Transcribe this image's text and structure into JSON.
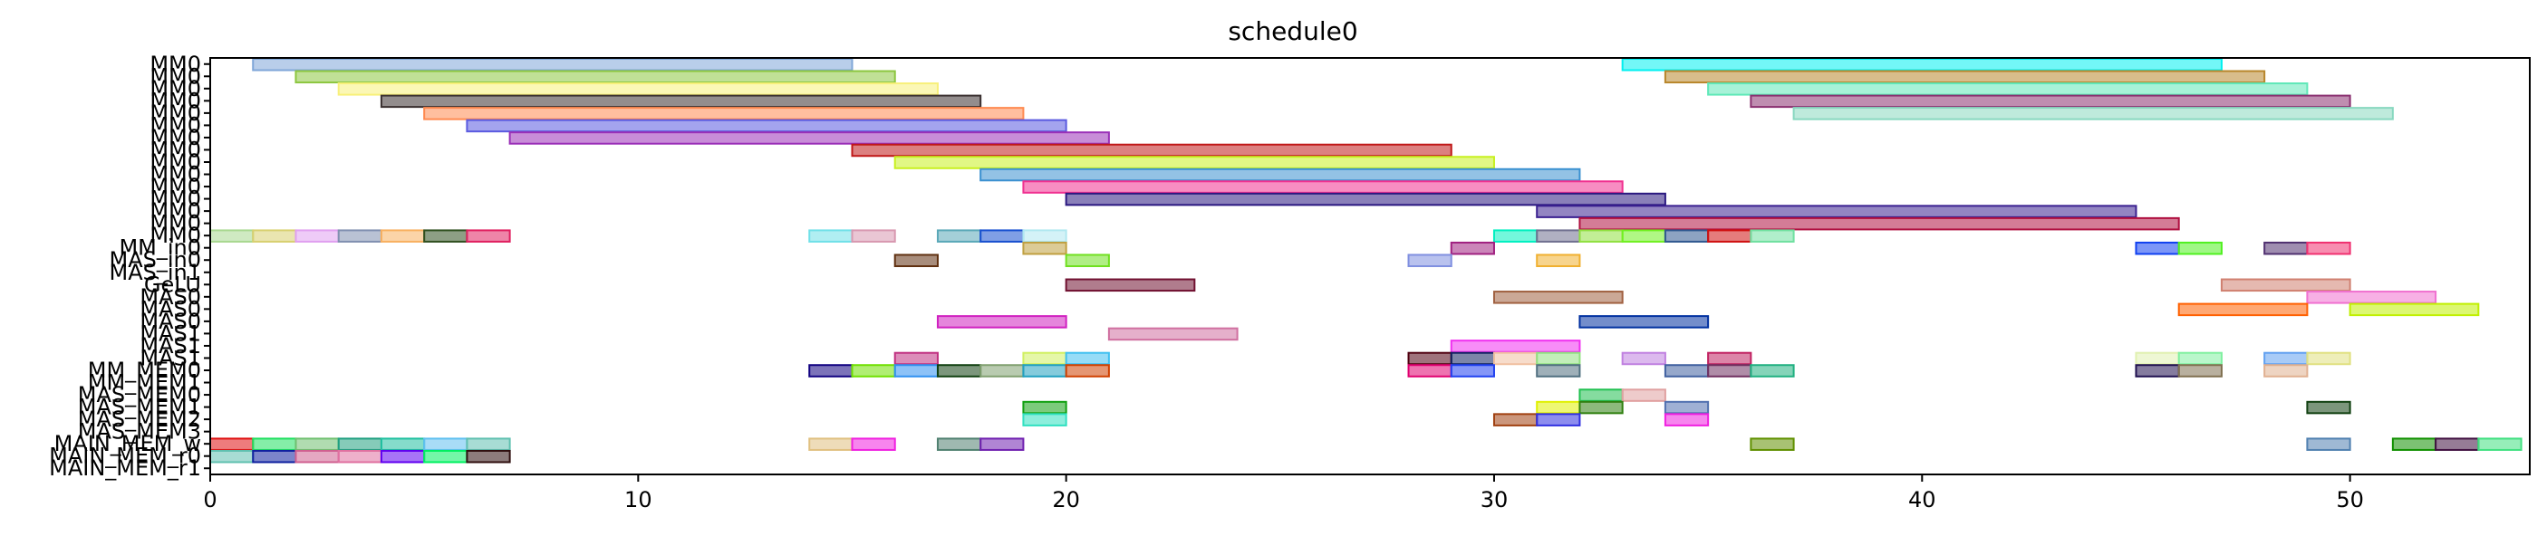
{
  "chart_data": {
    "type": "gantt",
    "title": "schedule0",
    "xlabel": "",
    "ylabel": "",
    "xlim": [
      0,
      54.2
    ],
    "xticks": [
      0,
      10,
      20,
      30,
      40,
      50
    ],
    "rows": [
      "MM0",
      "MM0",
      "MM0",
      "MM0",
      "MM0",
      "MM0",
      "MM0",
      "MM0",
      "MM0",
      "MM0",
      "MM0",
      "MM0",
      "MM0",
      "MM0",
      "MM0",
      "MM_in0",
      "MAS_in0",
      "MAS_in1",
      "GeLU",
      "MAS0",
      "MAS0",
      "MAS0",
      "MAS1",
      "MAS1",
      "MAS1",
      "MM_MEM0",
      "MM_MEM1",
      "MAS_MEM0",
      "MAS_MEM1",
      "MAS_MEM2",
      "MAS_MEM3",
      "MAIN_MEM_w",
      "MAIN_MEM_r0",
      "MAIN_MEM_r1"
    ],
    "tasks": [
      {
        "row": 0,
        "start": 1,
        "end": 15,
        "color": "#7FA6D8"
      },
      {
        "row": 0,
        "start": 33,
        "end": 47,
        "color": "#00F0F0"
      },
      {
        "row": 1,
        "start": 2,
        "end": 16,
        "color": "#8CC63F"
      },
      {
        "row": 1,
        "start": 34,
        "end": 48,
        "color": "#B8862B"
      },
      {
        "row": 2,
        "start": 3,
        "end": 17,
        "color": "#F8F07A"
      },
      {
        "row": 2,
        "start": 35,
        "end": 49,
        "color": "#5FE8B8"
      },
      {
        "row": 3,
        "start": 4,
        "end": 18,
        "color": "#3A3030"
      },
      {
        "row": 3,
        "start": 36,
        "end": 50,
        "color": "#8A3070"
      },
      {
        "row": 4,
        "start": 5,
        "end": 19,
        "color": "#FF8A50"
      },
      {
        "row": 4,
        "start": 37,
        "end": 51,
        "color": "#88D8C0"
      },
      {
        "row": 5,
        "start": 6,
        "end": 20,
        "color": "#5A5AE0"
      },
      {
        "row": 6,
        "start": 7,
        "end": 21,
        "color": "#9A30B8"
      },
      {
        "row": 7,
        "start": 15,
        "end": 29,
        "color": "#C01818"
      },
      {
        "row": 8,
        "start": 16,
        "end": 30,
        "color": "#C8F020"
      },
      {
        "row": 9,
        "start": 18,
        "end": 32,
        "color": "#3A90D0"
      },
      {
        "row": 10,
        "start": 19,
        "end": 33,
        "color": "#F03090"
      },
      {
        "row": 11,
        "start": 20,
        "end": 34,
        "color": "#2A1880"
      },
      {
        "row": 12,
        "start": 31,
        "end": 45,
        "color": "#3A2090"
      },
      {
        "row": 13,
        "start": 32,
        "end": 46,
        "color": "#B01040"
      },
      {
        "row": 14,
        "start": 0,
        "end": 1,
        "color": "#A8D890"
      },
      {
        "row": 14,
        "start": 1,
        "end": 2,
        "color": "#D8D070"
      },
      {
        "row": 14,
        "start": 2,
        "end": 3,
        "color": "#E0A0F0"
      },
      {
        "row": 14,
        "start": 3,
        "end": 4,
        "color": "#8090B0"
      },
      {
        "row": 14,
        "start": 4,
        "end": 5,
        "color": "#F8B060"
      },
      {
        "row": 14,
        "start": 5,
        "end": 6,
        "color": "#305020"
      },
      {
        "row": 14,
        "start": 6,
        "end": 7,
        "color": "#E02060"
      },
      {
        "row": 14,
        "start": 14,
        "end": 15,
        "color": "#70E0E8"
      },
      {
        "row": 14,
        "start": 15,
        "end": 16,
        "color": "#D898B0"
      },
      {
        "row": 14,
        "start": 17,
        "end": 18,
        "color": "#5AA8B8"
      },
      {
        "row": 14,
        "start": 18,
        "end": 19,
        "color": "#1850D0"
      },
      {
        "row": 14,
        "start": 19,
        "end": 20,
        "color": "#B0E8F0"
      },
      {
        "row": 14,
        "start": 30,
        "end": 31,
        "color": "#00F0C0"
      },
      {
        "row": 14,
        "start": 31,
        "end": 32,
        "color": "#707090"
      },
      {
        "row": 14,
        "start": 32,
        "end": 33,
        "color": "#90E040"
      },
      {
        "row": 14,
        "start": 33,
        "end": 34,
        "color": "#70F020"
      },
      {
        "row": 14,
        "start": 34,
        "end": 35,
        "color": "#305890"
      },
      {
        "row": 14,
        "start": 35,
        "end": 36,
        "color": "#D01010"
      },
      {
        "row": 14,
        "start": 36,
        "end": 37,
        "color": "#70E0A0"
      },
      {
        "row": 15,
        "start": 19,
        "end": 20,
        "color": "#C0A040"
      },
      {
        "row": 15,
        "start": 29,
        "end": 30,
        "color": "#A02080"
      },
      {
        "row": 15,
        "start": 45,
        "end": 46,
        "color": "#1040F0"
      },
      {
        "row": 15,
        "start": 46,
        "end": 47,
        "color": "#50F020"
      },
      {
        "row": 15,
        "start": 48,
        "end": 49,
        "color": "#503070"
      },
      {
        "row": 15,
        "start": 49,
        "end": 50,
        "color": "#F03070"
      },
      {
        "row": 16,
        "start": 16,
        "end": 17,
        "color": "#603010"
      },
      {
        "row": 16,
        "start": 20,
        "end": 21,
        "color": "#70E020"
      },
      {
        "row": 16,
        "start": 28,
        "end": 29,
        "color": "#8090E0"
      },
      {
        "row": 16,
        "start": 31,
        "end": 32,
        "color": "#F0B030"
      },
      {
        "row": 18,
        "start": 20,
        "end": 23,
        "color": "#701030"
      },
      {
        "row": 18,
        "start": 47,
        "end": 50,
        "color": "#D08070"
      },
      {
        "row": 19,
        "start": 30,
        "end": 33,
        "color": "#A06040"
      },
      {
        "row": 19,
        "start": 49,
        "end": 52,
        "color": "#F070D0"
      },
      {
        "row": 20,
        "start": 46,
        "end": 49,
        "color": "#FF6000"
      },
      {
        "row": 20,
        "start": 50,
        "end": 53,
        "color": "#C0F000"
      },
      {
        "row": 21,
        "start": 17,
        "end": 20,
        "color": "#D020C0"
      },
      {
        "row": 21,
        "start": 32,
        "end": 35,
        "color": "#0030A0"
      },
      {
        "row": 22,
        "start": 21,
        "end": 24,
        "color": "#D070A0"
      },
      {
        "row": 23,
        "start": 29,
        "end": 32,
        "color": "#F030F0"
      },
      {
        "row": 24,
        "start": 16,
        "end": 17,
        "color": "#C03080"
      },
      {
        "row": 24,
        "start": 19,
        "end": 20,
        "color": "#D0F060"
      },
      {
        "row": 24,
        "start": 20,
        "end": 21,
        "color": "#40C0F0"
      },
      {
        "row": 24,
        "start": 28,
        "end": 29,
        "color": "#500010"
      },
      {
        "row": 24,
        "start": 29,
        "end": 30,
        "color": "#102060"
      },
      {
        "row": 24,
        "start": 30,
        "end": 31,
        "color": "#F0C0A0"
      },
      {
        "row": 24,
        "start": 31,
        "end": 32,
        "color": "#90E080"
      },
      {
        "row": 24,
        "start": 33,
        "end": 34,
        "color": "#C080E0"
      },
      {
        "row": 24,
        "start": 35,
        "end": 36,
        "color": "#C02060"
      },
      {
        "row": 24,
        "start": 45,
        "end": 46,
        "color": "#E0F0B0"
      },
      {
        "row": 24,
        "start": 46,
        "end": 47,
        "color": "#80F0A0"
      },
      {
        "row": 24,
        "start": 48,
        "end": 49,
        "color": "#60A0F0"
      },
      {
        "row": 24,
        "start": 49,
        "end": 50,
        "color": "#E0E080"
      },
      {
        "row": 25,
        "start": 14,
        "end": 15,
        "color": "#100080"
      },
      {
        "row": 25,
        "start": 15,
        "end": 16,
        "color": "#70E000"
      },
      {
        "row": 25,
        "start": 16,
        "end": 17,
        "color": "#3090F0"
      },
      {
        "row": 25,
        "start": 17,
        "end": 18,
        "color": "#104010"
      },
      {
        "row": 25,
        "start": 18,
        "end": 19,
        "color": "#80A070"
      },
      {
        "row": 25,
        "start": 19,
        "end": 20,
        "color": "#20A0C0"
      },
      {
        "row": 25,
        "start": 20,
        "end": 21,
        "color": "#D04000"
      },
      {
        "row": 25,
        "start": 28,
        "end": 29,
        "color": "#E00070"
      },
      {
        "row": 25,
        "start": 29,
        "end": 30,
        "color": "#2040F0"
      },
      {
        "row": 25,
        "start": 31,
        "end": 32,
        "color": "#507080"
      },
      {
        "row": 25,
        "start": 34,
        "end": 35,
        "color": "#4060A0"
      },
      {
        "row": 25,
        "start": 35,
        "end": 36,
        "color": "#703060"
      },
      {
        "row": 25,
        "start": 36,
        "end": 37,
        "color": "#20B080"
      },
      {
        "row": 25,
        "start": 45,
        "end": 46,
        "color": "#201050"
      },
      {
        "row": 25,
        "start": 46,
        "end": 47,
        "color": "#807050"
      },
      {
        "row": 25,
        "start": 48,
        "end": 49,
        "color": "#E0B090"
      },
      {
        "row": 27,
        "start": 32,
        "end": 33,
        "color": "#20C050"
      },
      {
        "row": 27,
        "start": 33,
        "end": 34,
        "color": "#E0A0A0"
      },
      {
        "row": 28,
        "start": 19,
        "end": 20,
        "color": "#10A010"
      },
      {
        "row": 28,
        "start": 31,
        "end": 32,
        "color": "#E0F000"
      },
      {
        "row": 28,
        "start": 32,
        "end": 33,
        "color": "#308010"
      },
      {
        "row": 28,
        "start": 34,
        "end": 35,
        "color": "#5070B0"
      },
      {
        "row": 28,
        "start": 49,
        "end": 50,
        "color": "#104010"
      },
      {
        "row": 29,
        "start": 19,
        "end": 20,
        "color": "#30E0C0"
      },
      {
        "row": 29,
        "start": 30,
        "end": 31,
        "color": "#A04010"
      },
      {
        "row": 29,
        "start": 31,
        "end": 32,
        "color": "#3030E0"
      },
      {
        "row": 29,
        "start": 34,
        "end": 35,
        "color": "#F020E0"
      },
      {
        "row": 31,
        "start": 0,
        "end": 1,
        "color": "#E01010"
      },
      {
        "row": 31,
        "start": 1,
        "end": 2,
        "color": "#20E060"
      },
      {
        "row": 31,
        "start": 2,
        "end": 3,
        "color": "#70C070"
      },
      {
        "row": 31,
        "start": 3,
        "end": 4,
        "color": "#20A080"
      },
      {
        "row": 31,
        "start": 4,
        "end": 5,
        "color": "#20C0A0"
      },
      {
        "row": 31,
        "start": 5,
        "end": 6,
        "color": "#60C0F0"
      },
      {
        "row": 31,
        "start": 6,
        "end": 7,
        "color": "#60C0B0"
      },
      {
        "row": 31,
        "start": 14,
        "end": 15,
        "color": "#E0C080"
      },
      {
        "row": 31,
        "start": 15,
        "end": 16,
        "color": "#F020E0"
      },
      {
        "row": 31,
        "start": 17,
        "end": 18,
        "color": "#508070"
      },
      {
        "row": 31,
        "start": 18,
        "end": 19,
        "color": "#7020B0"
      },
      {
        "row": 31,
        "start": 36,
        "end": 37,
        "color": "#609000"
      },
      {
        "row": 31,
        "start": 49,
        "end": 50,
        "color": "#5080B0"
      },
      {
        "row": 31,
        "start": 51,
        "end": 52,
        "color": "#109000"
      },
      {
        "row": 31,
        "start": 52,
        "end": 53,
        "color": "#401040"
      },
      {
        "row": 31,
        "start": 53,
        "end": 54,
        "color": "#40E080"
      },
      {
        "row": 32,
        "start": 0,
        "end": 1,
        "color": "#60C0B0"
      },
      {
        "row": 32,
        "start": 1,
        "end": 2,
        "color": "#1020A0"
      },
      {
        "row": 32,
        "start": 2,
        "end": 3,
        "color": "#D06090"
      },
      {
        "row": 32,
        "start": 3,
        "end": 4,
        "color": "#E070A0"
      },
      {
        "row": 32,
        "start": 4,
        "end": 5,
        "color": "#6000F0"
      },
      {
        "row": 32,
        "start": 5,
        "end": 6,
        "color": "#00F060"
      },
      {
        "row": 32,
        "start": 6,
        "end": 7,
        "color": "#301010"
      }
    ]
  }
}
